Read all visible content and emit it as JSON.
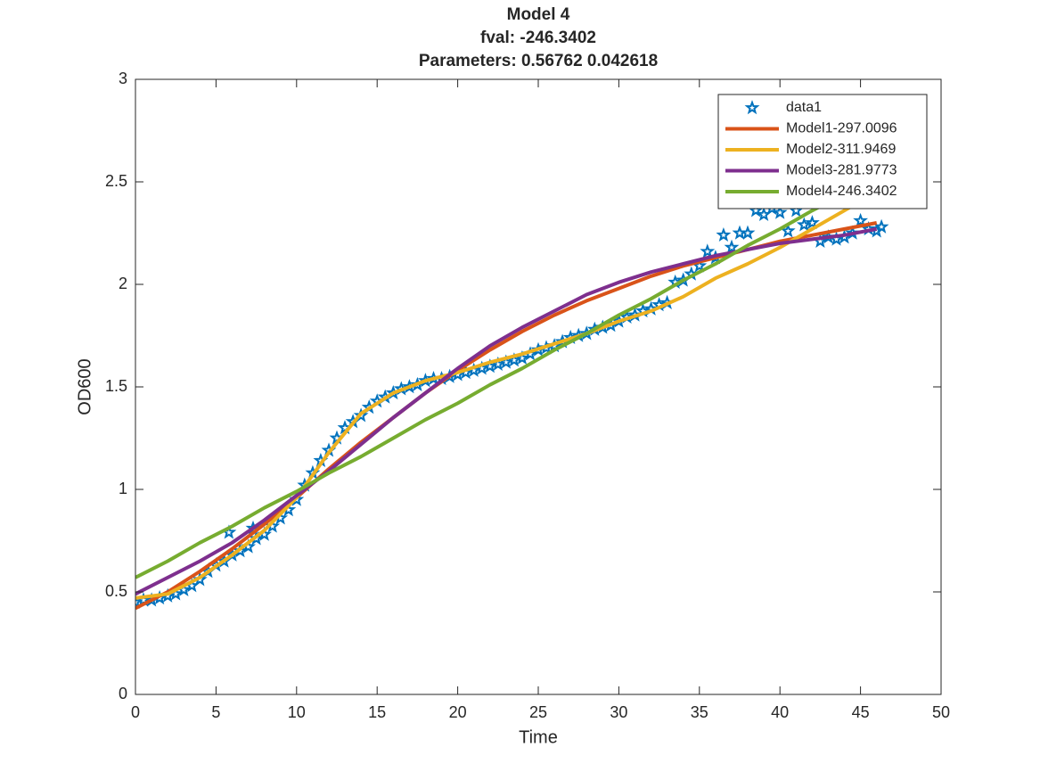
{
  "chart_data": {
    "type": "line",
    "title": [
      "Model 4",
      "fval: -246.3402",
      "Parameters: 0.56762    0.042618"
    ],
    "x_label": "Time",
    "y_label": "OD600",
    "xlim": [
      0,
      50
    ],
    "xticks": [
      0,
      5,
      10,
      15,
      20,
      25,
      30,
      35,
      40,
      45,
      50
    ],
    "ylim": [
      0,
      3
    ],
    "yticks": [
      0,
      0.5,
      1,
      1.5,
      2,
      2.5,
      3
    ],
    "grid": false,
    "legend": "northeast",
    "series": [
      {
        "name": "data1",
        "color": "#0072BD",
        "marker": "star",
        "line": false,
        "x": [
          0,
          0.5,
          1,
          1.5,
          2,
          2.5,
          3,
          3.5,
          4,
          4.5,
          5,
          5.5,
          5.8,
          6,
          6.5,
          7,
          7.3,
          7.5,
          8,
          8.5,
          9,
          9.5,
          10,
          10.5,
          11,
          11.5,
          12,
          12.5,
          13,
          13.5,
          14,
          14.5,
          15,
          15.5,
          16,
          16.5,
          17,
          17.5,
          18,
          18.5,
          19,
          19.5,
          20,
          20.5,
          21,
          21.5,
          22,
          22.5,
          23,
          23.5,
          24,
          24.5,
          25,
          25.5,
          26,
          26.5,
          27,
          27.5,
          28,
          28.5,
          29,
          29.5,
          30,
          30.5,
          31,
          31.5,
          32,
          32.5,
          33,
          33.5,
          34,
          34.5,
          35,
          35.5,
          36,
          36.5,
          37,
          37.5,
          38,
          38.5,
          39,
          39.5,
          40,
          40.5,
          41,
          41.5,
          42,
          42.5,
          43,
          43.5,
          44,
          44.5,
          45,
          45.5,
          46,
          46.3
        ],
        "values": [
          0.45,
          0.46,
          0.46,
          0.47,
          0.48,
          0.49,
          0.51,
          0.53,
          0.56,
          0.6,
          0.63,
          0.65,
          0.79,
          0.68,
          0.7,
          0.72,
          0.81,
          0.76,
          0.78,
          0.82,
          0.86,
          0.9,
          0.95,
          1.02,
          1.08,
          1.14,
          1.19,
          1.25,
          1.3,
          1.33,
          1.36,
          1.4,
          1.43,
          1.45,
          1.47,
          1.49,
          1.5,
          1.51,
          1.53,
          1.54,
          1.54,
          1.55,
          1.56,
          1.57,
          1.58,
          1.59,
          1.6,
          1.61,
          1.62,
          1.63,
          1.64,
          1.66,
          1.68,
          1.69,
          1.7,
          1.72,
          1.74,
          1.75,
          1.76,
          1.78,
          1.79,
          1.8,
          1.82,
          1.84,
          1.85,
          1.87,
          1.88,
          1.9,
          1.91,
          2.01,
          2.02,
          2.05,
          2.09,
          2.16,
          2.13,
          2.24,
          2.18,
          2.25,
          2.25,
          2.36,
          2.34,
          2.37,
          2.35,
          2.26,
          2.36,
          2.29,
          2.3,
          2.21,
          2.23,
          2.22,
          2.23,
          2.25,
          2.31,
          2.27,
          2.26,
          2.28
        ]
      },
      {
        "name": "Model1-297.0096",
        "color": "#D95319",
        "x": [
          0,
          2,
          4,
          6,
          8,
          10,
          12,
          14,
          16,
          18,
          20,
          22,
          24,
          26,
          28,
          30,
          32,
          34,
          36,
          38,
          40,
          42,
          44,
          46
        ],
        "values": [
          0.42,
          0.5,
          0.6,
          0.71,
          0.83,
          0.96,
          1.1,
          1.23,
          1.35,
          1.47,
          1.58,
          1.68,
          1.77,
          1.85,
          1.92,
          1.98,
          2.04,
          2.09,
          2.13,
          2.17,
          2.21,
          2.24,
          2.27,
          2.3
        ]
      },
      {
        "name": "Model2-311.9469",
        "color": "#EDB120",
        "x": [
          0,
          2,
          4,
          6,
          8,
          10,
          12,
          14,
          16,
          18,
          20,
          22,
          24,
          26,
          28,
          30,
          32,
          34,
          36,
          38,
          40,
          42,
          44,
          46
        ],
        "values": [
          0.47,
          0.49,
          0.57,
          0.68,
          0.8,
          0.96,
          1.18,
          1.37,
          1.47,
          1.53,
          1.57,
          1.62,
          1.66,
          1.71,
          1.76,
          1.82,
          1.87,
          1.94,
          2.03,
          2.1,
          2.18,
          2.27,
          2.36,
          2.45
        ]
      },
      {
        "name": "Model3-281.9773",
        "color": "#7E2F8E",
        "x": [
          0,
          2,
          4,
          6,
          8,
          10,
          12,
          14,
          16,
          18,
          20,
          22,
          24,
          26,
          28,
          30,
          32,
          34,
          36,
          38,
          40,
          42,
          44,
          46
        ],
        "values": [
          0.49,
          0.57,
          0.65,
          0.74,
          0.85,
          0.97,
          1.09,
          1.22,
          1.35,
          1.47,
          1.59,
          1.7,
          1.79,
          1.87,
          1.95,
          2.01,
          2.06,
          2.1,
          2.14,
          2.17,
          2.2,
          2.22,
          2.24,
          2.27
        ]
      },
      {
        "name": "Model4-246.3402",
        "color": "#77AC30",
        "x": [
          0,
          2,
          4,
          6,
          8,
          10,
          12,
          14,
          16,
          18,
          20,
          22,
          24,
          26,
          28,
          30,
          32,
          34,
          36,
          38,
          40,
          42,
          44,
          46
        ],
        "values": [
          0.57,
          0.65,
          0.74,
          0.82,
          0.91,
          0.99,
          1.08,
          1.16,
          1.25,
          1.34,
          1.42,
          1.51,
          1.59,
          1.68,
          1.76,
          1.85,
          1.93,
          2.02,
          2.1,
          2.19,
          2.27,
          2.36,
          2.44,
          2.53
        ]
      }
    ]
  }
}
